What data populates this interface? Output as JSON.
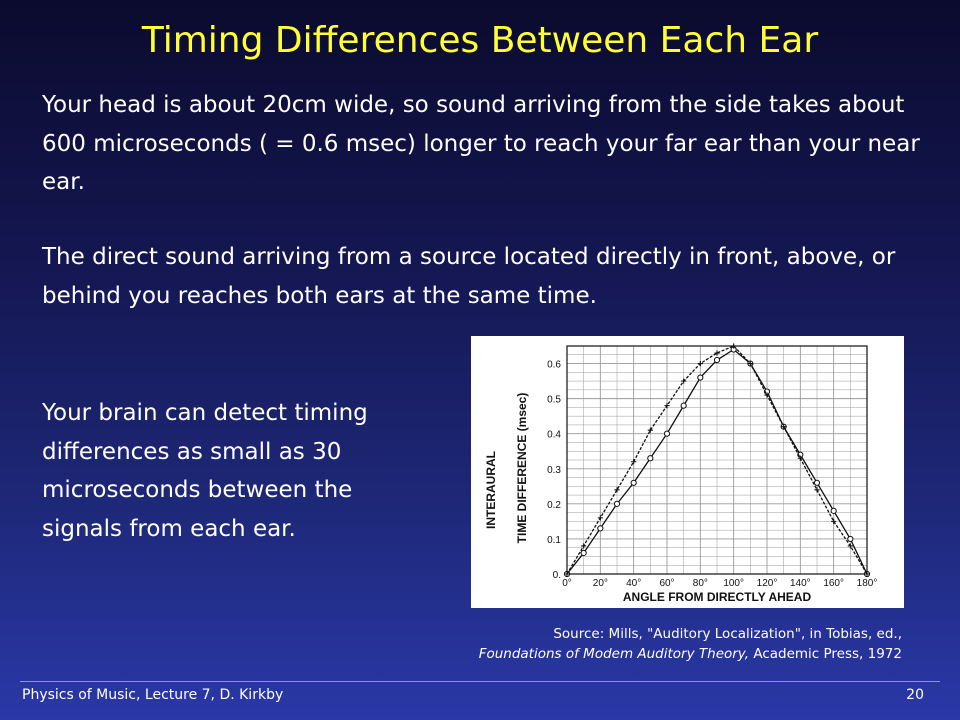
{
  "slide": {
    "title": "Timing Differences Between Each Ear",
    "paragraph1": "Your head is about 20cm wide, so sound arriving from the side takes about 600 microseconds ( = 0.6 msec) longer to reach your far ear than your near ear.",
    "paragraph2": "The direct sound arriving from a source located directly in front, above, or behind you reaches both ears at the same time.",
    "paragraph3": "Your brain can detect timing differences as small as 30 microseconds between the signals from each ear.",
    "source_line1": "Source: Mills, \"Auditory Localization\", in Tobias, ed.,",
    "source_line2_italic": "Foundations of Modem Auditory Theory,",
    "source_line2_rest": " Academic Press, 1972",
    "footer_left": "Physics of Music, Lecture 7, D. Kirkby",
    "footer_right": "20"
  },
  "colors": {
    "title": "#ffff33",
    "text": "#ffffff",
    "chart_ink": "#111111",
    "grid": "#9a9a9a"
  },
  "chart_data": {
    "type": "line",
    "xlabel": "ANGLE FROM DIRECTLY AHEAD",
    "ylabel_line1": "INTERAURAL",
    "ylabel_line2": "TIME DIFFERENCE (msec)",
    "xlim": [
      0,
      180
    ],
    "ylim": [
      0,
      0.65
    ],
    "x_ticks": [
      0,
      20,
      40,
      60,
      80,
      100,
      120,
      140,
      160,
      180
    ],
    "x_tick_labels": [
      "0°",
      "20°",
      "40°",
      "60°",
      "80°",
      "100°",
      "120°",
      "140°",
      "160°",
      "180°"
    ],
    "y_ticks": [
      0,
      0.1,
      0.2,
      0.3,
      0.4,
      0.5,
      0.6
    ],
    "y_tick_labels": [
      "0.",
      "0.1",
      "0.2",
      "0.3",
      "0.4",
      "0.5",
      "0.6"
    ],
    "grid": true,
    "series": [
      {
        "marker": "circle",
        "x": [
          0,
          10,
          20,
          30,
          40,
          50,
          60,
          70,
          80,
          90,
          100,
          110,
          120,
          130,
          140,
          150,
          160,
          170,
          180
        ],
        "y": [
          0,
          0.06,
          0.13,
          0.2,
          0.26,
          0.33,
          0.4,
          0.48,
          0.56,
          0.61,
          0.64,
          0.6,
          0.52,
          0.42,
          0.34,
          0.26,
          0.18,
          0.1,
          0
        ]
      },
      {
        "marker": "cross",
        "x": [
          0,
          10,
          20,
          30,
          40,
          50,
          60,
          70,
          80,
          90,
          100,
          110,
          120,
          130,
          140,
          150,
          160,
          170,
          180
        ],
        "y": [
          0,
          0.08,
          0.16,
          0.24,
          0.32,
          0.41,
          0.48,
          0.55,
          0.6,
          0.63,
          0.65,
          0.6,
          0.51,
          0.42,
          0.33,
          0.24,
          0.15,
          0.08,
          0
        ]
      }
    ]
  }
}
